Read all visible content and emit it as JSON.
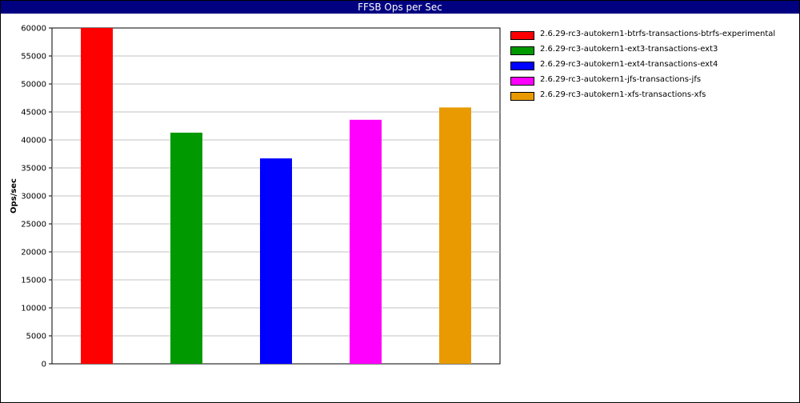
{
  "chart_data": {
    "type": "bar",
    "title": "FFSB Ops per Sec",
    "xlabel": "",
    "ylabel": "Ops/sec",
    "ylim": [
      0,
      60000
    ],
    "yticks": [
      0,
      5000,
      10000,
      15000,
      20000,
      25000,
      30000,
      35000,
      40000,
      45000,
      50000,
      55000,
      60000
    ],
    "grid": true,
    "legend_position": "right",
    "categories": [
      "2.6.29-rc3-autokern1-btrfs-transactions-btrfs-experimental",
      "2.6.29-rc3-autokern1-ext3-transactions-ext3",
      "2.6.29-rc3-autokern1-ext4-transactions-ext4",
      "2.6.29-rc3-autokern1-jfs-transactions-jfs",
      "2.6.29-rc3-autokern1-xfs-transactions-xfs"
    ],
    "values": [
      60000,
      41300,
      36700,
      43600,
      45800
    ],
    "colors": [
      "#ff0000",
      "#009900",
      "#0000ff",
      "#ff00ff",
      "#e89a00"
    ]
  }
}
